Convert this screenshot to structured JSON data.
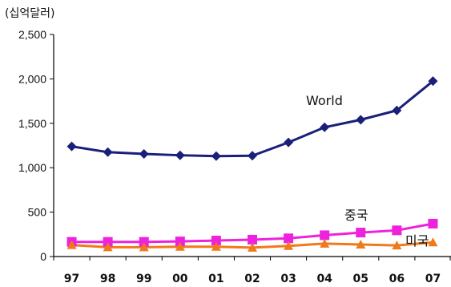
{
  "chart_data": {
    "type": "line",
    "ylabel": "(십억달러)",
    "ylim": [
      0,
      2500
    ],
    "yticks": [
      "2,500",
      "2,000",
      "1,500",
      "1,000",
      "500",
      "0"
    ],
    "yticks_values": [
      2500,
      2000,
      1500,
      1000,
      500,
      0
    ],
    "categories": [
      "97",
      "98",
      "99",
      "00",
      "01",
      "02",
      "03",
      "04",
      "05",
      "06",
      "07"
    ],
    "grid": false,
    "series": [
      {
        "name": "World",
        "color": "#1a1f7a",
        "marker": "diamond",
        "values": [
          1240,
          1175,
          1155,
          1140,
          1130,
          1135,
          1285,
          1455,
          1540,
          1645,
          1975
        ]
      },
      {
        "name": "중국",
        "color": "#ee22dd",
        "marker": "square",
        "values": [
          165,
          165,
          165,
          170,
          180,
          190,
          205,
          240,
          270,
          295,
          370
        ]
      },
      {
        "name": "미국",
        "color": "#f07a1a",
        "marker": "triangle",
        "values": [
          130,
          105,
          105,
          110,
          110,
          100,
          120,
          145,
          135,
          125,
          160
        ]
      }
    ]
  }
}
